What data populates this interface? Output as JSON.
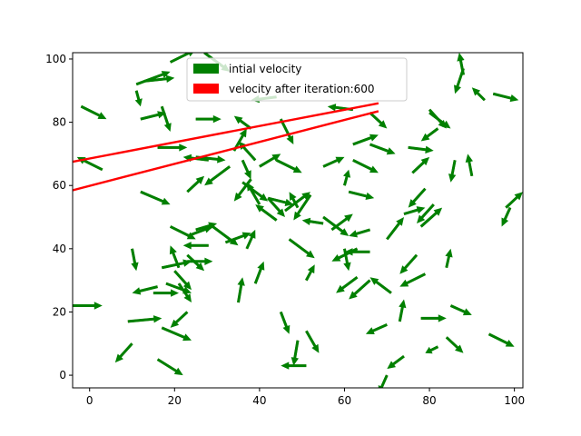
{
  "chart_data": {
    "type": "quiver",
    "xlim": [
      -4,
      102
    ],
    "ylim": [
      -4,
      102
    ],
    "x_ticks": [
      0,
      20,
      40,
      60,
      80,
      100
    ],
    "y_ticks": [
      0,
      20,
      40,
      60,
      80,
      100
    ],
    "grid": false,
    "legend": {
      "placement": "upper-center",
      "entries": [
        {
          "label": "intial velocity",
          "color": "#008000"
        },
        {
          "label": "velocity  after iteration:600",
          "color": "#ff0000"
        }
      ]
    },
    "colors": {
      "initial": "#008000",
      "after": "#ff0000",
      "underlay": "#8b3a00"
    },
    "initial_vectors": [
      [
        -2,
        85,
        6,
        -4
      ],
      [
        -4,
        22,
        7,
        0
      ],
      [
        3,
        65,
        -6,
        4
      ],
      [
        10,
        40,
        1,
        -7
      ],
      [
        9,
        17,
        8,
        1
      ],
      [
        10,
        10,
        -4,
        -6
      ],
      [
        12,
        58,
        7,
        -4
      ],
      [
        13,
        93,
        7,
        1
      ],
      [
        11,
        92,
        8,
        4
      ],
      [
        12,
        81,
        6,
        2
      ],
      [
        11,
        90,
        1,
        -5
      ],
      [
        15,
        26,
        6,
        0
      ],
      [
        16,
        28,
        -6,
        -2
      ],
      [
        16,
        72,
        7,
        0
      ],
      [
        16,
        5,
        6,
        -5
      ],
      [
        17,
        34,
        7,
        2
      ],
      [
        17,
        15,
        7,
        -4
      ],
      [
        17,
        85,
        2,
        -8
      ],
      [
        18,
        29,
        6,
        -3
      ],
      [
        19,
        99,
        6,
        4
      ],
      [
        19,
        47,
        6,
        -4
      ],
      [
        20,
        33,
        4,
        -6
      ],
      [
        21,
        34,
        -2,
        7
      ],
      [
        21,
        29,
        3,
        -6
      ],
      [
        23,
        44,
        6,
        3
      ],
      [
        23,
        20,
        -4,
        -5
      ],
      [
        23,
        38,
        4,
        -5
      ],
      [
        23,
        58,
        4,
        5
      ],
      [
        23,
        36,
        6,
        0
      ],
      [
        25,
        46,
        5,
        2
      ],
      [
        25,
        69,
        7,
        -1
      ],
      [
        25,
        81,
        6,
        0
      ],
      [
        28,
        68,
        -6,
        1
      ],
      [
        27,
        102,
        6,
        -6
      ],
      [
        28,
        41,
        -6,
        0
      ],
      [
        29,
        47,
        6,
        -6
      ],
      [
        32,
        42,
        6,
        3
      ],
      [
        33,
        66,
        -6,
        -6
      ],
      [
        34,
        71,
        3,
        7
      ],
      [
        35,
        23,
        1,
        8
      ],
      [
        36,
        68,
        2,
        -6
      ],
      [
        36,
        61,
        6,
        -6
      ],
      [
        37,
        40,
        2,
        6
      ],
      [
        38,
        62,
        -4,
        -7
      ],
      [
        38,
        78,
        -4,
        4
      ],
      [
        39,
        68,
        -4,
        6
      ],
      [
        39,
        29,
        2,
        7
      ],
      [
        40,
        54,
        -3,
        7
      ],
      [
        40,
        66,
        5,
        4
      ],
      [
        42,
        56,
        6,
        -2
      ],
      [
        42,
        56,
        4,
        -6
      ],
      [
        44,
        49,
        -5,
        5
      ],
      [
        44,
        68,
        6,
        -4
      ],
      [
        44,
        88,
        -6,
        -1
      ],
      [
        45,
        81,
        3,
        -8
      ],
      [
        45,
        20,
        2,
        -7
      ],
      [
        46,
        52,
        6,
        6
      ],
      [
        47,
        43,
        6,
        -6
      ],
      [
        49,
        53,
        -2,
        5
      ],
      [
        49,
        11,
        -1,
        -8
      ],
      [
        51,
        30,
        2,
        5
      ],
      [
        51,
        14,
        3,
        -7
      ],
      [
        51,
        3,
        -6,
        0
      ],
      [
        52,
        57,
        -4,
        -8
      ],
      [
        55,
        50,
        6,
        -6
      ],
      [
        55,
        48,
        -5,
        1
      ],
      [
        55,
        66,
        5,
        3
      ],
      [
        57,
        46,
        5,
        5
      ],
      [
        60,
        40,
        1,
        -7
      ],
      [
        60,
        60,
        1,
        5
      ],
      [
        61,
        58,
        6,
        -2
      ],
      [
        62,
        84,
        -6,
        1
      ],
      [
        62,
        73,
        6,
        3
      ],
      [
        62,
        68,
        6,
        -4
      ],
      [
        63,
        40,
        -6,
        -4
      ],
      [
        63,
        31,
        -5,
        -5
      ],
      [
        66,
        39,
        -6,
        0
      ],
      [
        66,
        46,
        -5,
        -2
      ],
      [
        66,
        30,
        -5,
        -6
      ],
      [
        66,
        83,
        4,
        -5
      ],
      [
        66,
        73,
        6,
        -3
      ],
      [
        70,
        16,
        -5,
        -3
      ],
      [
        70,
        0,
        -2,
        -6
      ],
      [
        70,
        43,
        4,
        7
      ],
      [
        71,
        26,
        -5,
        5
      ],
      [
        73,
        17,
        1,
        7
      ],
      [
        74,
        6,
        -4,
        -4
      ],
      [
        74,
        51,
        5,
        2
      ],
      [
        75,
        72,
        6,
        -1
      ],
      [
        76,
        64,
        4,
        5
      ],
      [
        77,
        38,
        -4,
        -6
      ],
      [
        78,
        47,
        5,
        6
      ],
      [
        78,
        18,
        6,
        0
      ],
      [
        79,
        59,
        -4,
        -6
      ],
      [
        79,
        32,
        -6,
        -4
      ],
      [
        80,
        84,
        4,
        -6
      ],
      [
        80,
        83,
        5,
        -5
      ],
      [
        81,
        54,
        -4,
        -6
      ],
      [
        82,
        9,
        -3,
        -2
      ],
      [
        82,
        78,
        -4,
        -4
      ],
      [
        84,
        34,
        1,
        6
      ],
      [
        84,
        12,
        4,
        -5
      ],
      [
        85,
        22,
        5,
        -3
      ],
      [
        86,
        68,
        -1,
        -7
      ],
      [
        88,
        95,
        -1,
        7
      ],
      [
        88,
        97,
        -2,
        -8
      ],
      [
        90,
        63,
        -1,
        7
      ],
      [
        93,
        87,
        -3,
        4
      ],
      [
        94,
        13,
        6,
        -4
      ],
      [
        95,
        89,
        6,
        -2
      ],
      [
        98,
        53,
        4,
        5
      ],
      [
        99,
        53,
        -2,
        -6
      ]
    ],
    "after_lines": [
      [
        [
          -4,
          67.5
        ],
        [
          68,
          86
        ]
      ],
      [
        [
          -4,
          58.5
        ],
        [
          68,
          83.5
        ]
      ]
    ]
  }
}
